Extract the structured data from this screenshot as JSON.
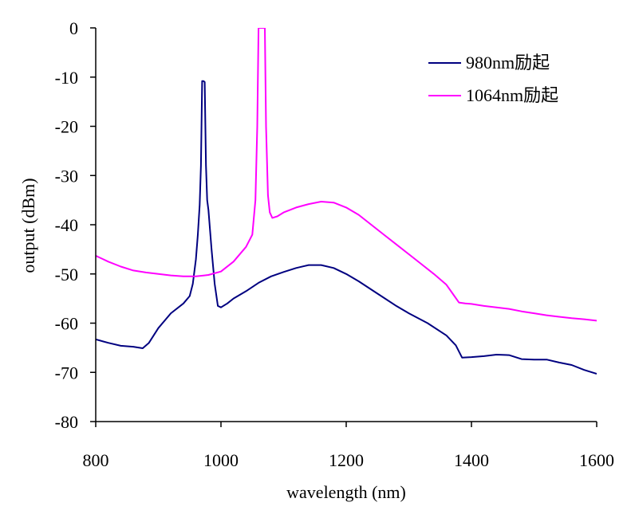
{
  "chart_data": {
    "type": "line",
    "title": "",
    "xlabel": "wavelength (nm)",
    "ylabel": "output (dBm)",
    "xlim": [
      800,
      1600
    ],
    "ylim": [
      -80,
      0
    ],
    "xticks": [
      800,
      1000,
      1200,
      1400,
      1600
    ],
    "xtick_labels": [
      "800",
      "1000",
      "1200",
      "1400",
      "1600"
    ],
    "yticks": [
      0,
      -10,
      -20,
      -30,
      -40,
      -50,
      -60,
      -70,
      -80
    ],
    "ytick_labels": [
      "0",
      "-10",
      "-20",
      "-30",
      "-40",
      "-50",
      "-60",
      "-70",
      "-80"
    ],
    "grid": false,
    "legend_position": "top-right",
    "series": [
      {
        "name": "980nm励起",
        "color": "#000080",
        "x": [
          800,
          820,
          840,
          860,
          875,
          885,
          900,
          920,
          940,
          950,
          955,
          960,
          963,
          966,
          968,
          970,
          972,
          974,
          976,
          978,
          980,
          985,
          990,
          995,
          1000,
          1010,
          1020,
          1040,
          1060,
          1080,
          1100,
          1120,
          1140,
          1160,
          1180,
          1200,
          1220,
          1250,
          1280,
          1300,
          1330,
          1360,
          1375,
          1385,
          1400,
          1420,
          1440,
          1460,
          1480,
          1500,
          1520,
          1540,
          1560,
          1580,
          1600
        ],
        "y": [
          -63.3,
          -64.0,
          -64.6,
          -64.8,
          -65.1,
          -64.0,
          -61.0,
          -58.0,
          -56.0,
          -54.5,
          -52.0,
          -47.0,
          -42.0,
          -36.0,
          -28.0,
          -10.8,
          -10.8,
          -11.0,
          -28.0,
          -35.0,
          -37.0,
          -45.0,
          -52.0,
          -56.5,
          -56.8,
          -56.0,
          -55.0,
          -53.5,
          -51.8,
          -50.5,
          -49.6,
          -48.8,
          -48.2,
          -48.2,
          -48.8,
          -50.0,
          -51.5,
          -54.0,
          -56.5,
          -58.0,
          -60.0,
          -62.5,
          -64.5,
          -67.0,
          -66.9,
          -66.7,
          -66.4,
          -66.5,
          -67.3,
          -67.4,
          -67.4,
          -68.0,
          -68.5,
          -69.5,
          -70.3
        ]
      },
      {
        "name": "1064nm励起",
        "color": "#ff00ff",
        "x": [
          800,
          820,
          840,
          860,
          880,
          900,
          920,
          940,
          960,
          980,
          1000,
          1020,
          1040,
          1050,
          1055,
          1058,
          1060,
          1064,
          1068,
          1070,
          1072,
          1075,
          1078,
          1082,
          1090,
          1100,
          1120,
          1140,
          1160,
          1180,
          1200,
          1220,
          1240,
          1260,
          1280,
          1300,
          1320,
          1340,
          1360,
          1370,
          1380,
          1390,
          1400,
          1420,
          1440,
          1460,
          1480,
          1500,
          1520,
          1540,
          1560,
          1580,
          1600
        ],
        "y": [
          -46.3,
          -47.5,
          -48.5,
          -49.3,
          -49.7,
          -50.0,
          -50.3,
          -50.5,
          -50.5,
          -50.2,
          -49.5,
          -47.5,
          -44.5,
          -42.0,
          -35.0,
          -20.0,
          0.0,
          0.0,
          0.0,
          0.0,
          -20.0,
          -34.0,
          -37.5,
          -38.6,
          -38.3,
          -37.5,
          -36.5,
          -35.8,
          -35.3,
          -35.5,
          -36.5,
          -38.0,
          -40.0,
          -42.0,
          -44.0,
          -46.0,
          -48.0,
          -50.0,
          -52.2,
          -54.0,
          -55.8,
          -56.0,
          -56.1,
          -56.5,
          -56.8,
          -57.1,
          -57.6,
          -58.0,
          -58.4,
          -58.7,
          -59.0,
          -59.2,
          -59.5
        ]
      }
    ]
  }
}
